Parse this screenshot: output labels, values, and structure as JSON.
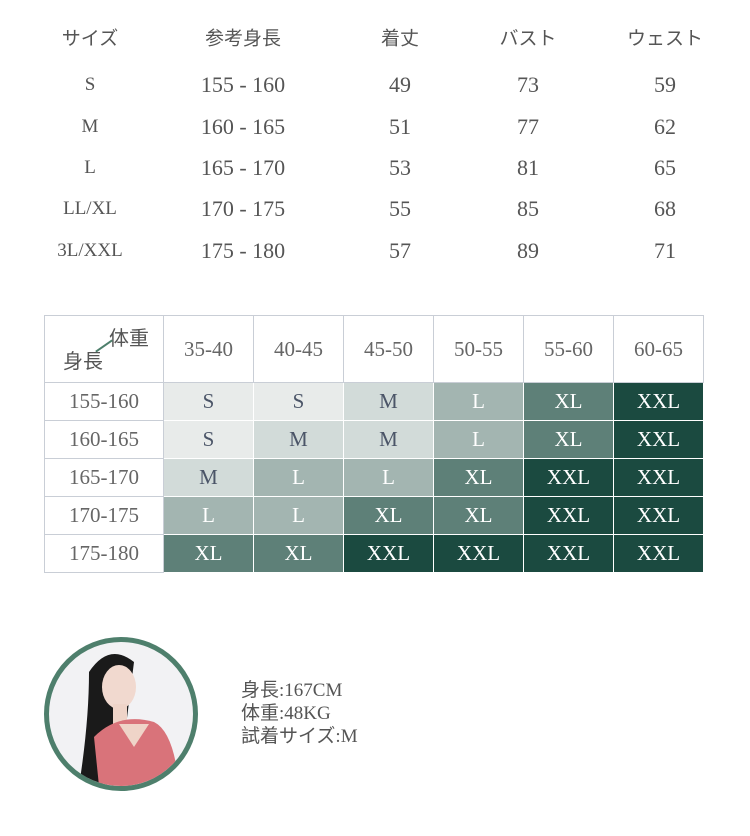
{
  "size_table": {
    "headers": [
      "サイズ",
      "参考身長",
      "着丈",
      "バスト",
      "ウェスト"
    ],
    "rows": [
      [
        "S",
        "155 - 160",
        "49",
        "73",
        "59"
      ],
      [
        "M",
        "160 - 165",
        "51",
        "77",
        "62"
      ],
      [
        "L",
        "165 - 170",
        "53",
        "81",
        "65"
      ],
      [
        "LL/XL",
        "170 - 175",
        "55",
        "85",
        "68"
      ],
      [
        "3L/XXL",
        "175 - 180",
        "57",
        "89",
        "71"
      ]
    ]
  },
  "grid": {
    "corner_top": "体重",
    "corner_bottom": "身長",
    "columns": [
      "35-40",
      "40-45",
      "45-50",
      "50-55",
      "55-60",
      "60-65"
    ],
    "rows": [
      {
        "label": "155-160",
        "cells": [
          "S",
          "S",
          "M",
          "L",
          "XL",
          "XXL"
        ]
      },
      {
        "label": "160-165",
        "cells": [
          "S",
          "M",
          "M",
          "L",
          "XL",
          "XXL"
        ]
      },
      {
        "label": "165-170",
        "cells": [
          "M",
          "L",
          "L",
          "XL",
          "XXL",
          "XXL"
        ]
      },
      {
        "label": "170-175",
        "cells": [
          "L",
          "L",
          "XL",
          "XL",
          "XXL",
          "XXL"
        ]
      },
      {
        "label": "175-180",
        "cells": [
          "XL",
          "XL",
          "XXL",
          "XXL",
          "XXL",
          "XXL"
        ]
      }
    ],
    "colors": {
      "S": "#e8ebea",
      "M": "#d2dbd9",
      "L": "#a3b5b1",
      "XL": "#5e8078",
      "XXL": "#1b4a40"
    }
  },
  "model": {
    "height": "身長:167CM",
    "weight": "体重:48KG",
    "size": "試着サイズ:M"
  }
}
